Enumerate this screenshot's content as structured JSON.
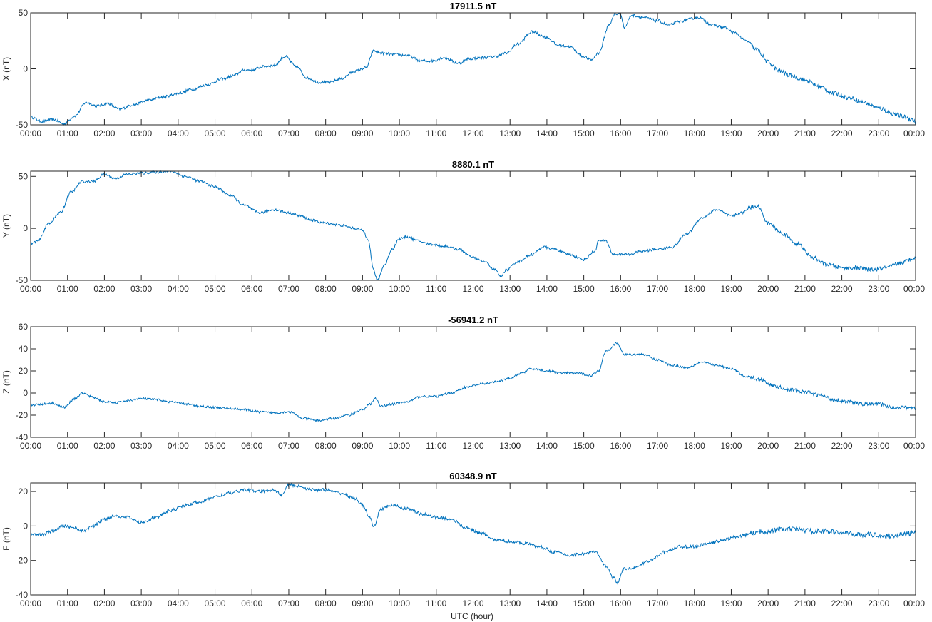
{
  "figure": {
    "xlabel": "UTC (hour)",
    "line_color": "#0072bd",
    "axis_color": "#262626",
    "background": "#ffffff"
  },
  "chart_data": [
    {
      "type": "line",
      "title": "17911.5 nT",
      "ylabel": "X (nT)",
      "ylim": [
        -50,
        50
      ],
      "yticks": [
        -50,
        0,
        50
      ],
      "xlim": [
        0,
        24
      ],
      "xticks": [
        "00:00",
        "01:00",
        "02:00",
        "03:00",
        "04:00",
        "05:00",
        "06:00",
        "07:00",
        "08:00",
        "09:00",
        "10:00",
        "11:00",
        "12:00",
        "13:00",
        "14:00",
        "15:00",
        "16:00",
        "17:00",
        "18:00",
        "19:00",
        "20:00",
        "21:00",
        "22:00",
        "23:00",
        "00:00"
      ],
      "grid": false,
      "noise": 1.2,
      "series": [
        {
          "x": [
            0,
            0.3,
            0.6,
            0.9,
            1.2,
            1.5,
            1.8,
            2.1,
            2.4,
            2.8,
            3.2,
            3.6,
            4,
            4.4,
            4.8,
            5.2,
            5.5,
            5.8,
            6,
            6.3,
            6.6,
            6.9,
            7.2,
            7.5,
            7.8,
            8.1,
            8.4,
            8.8,
            9.1,
            9.3,
            9.5,
            9.8,
            10.2,
            10.6,
            10.9,
            11.2,
            11.6,
            11.9,
            12.2,
            12.6,
            12.9,
            13.2,
            13.6,
            14,
            14.3,
            14.6,
            15,
            15.2,
            15.4,
            15.7,
            15.85,
            16.0,
            16.1,
            16.3,
            16.6,
            17,
            17.3,
            17.6,
            17.8,
            18.1,
            18.5,
            18.8,
            19.1,
            19.4,
            19.7,
            20,
            20.3,
            20.6,
            21,
            21.4,
            21.8,
            22.2,
            22.6,
            23,
            23.4,
            23.7,
            23.9,
            24
          ],
          "y": [
            -43,
            -47,
            -45,
            -49,
            -42,
            -30,
            -33,
            -31,
            -36,
            -32,
            -28,
            -25,
            -22,
            -18,
            -14,
            -9,
            -6,
            -1,
            -1,
            2,
            3,
            11,
            2,
            -8,
            -12,
            -12,
            -9,
            -2,
            1,
            16,
            14,
            13,
            12,
            7,
            7,
            10,
            5,
            9,
            10,
            11,
            14,
            22,
            33,
            28,
            21,
            20,
            11,
            8,
            14,
            40,
            49,
            49,
            37,
            48,
            46,
            43,
            39,
            42,
            44,
            46,
            39,
            37,
            32,
            25,
            17,
            6,
            -2,
            -6,
            -10,
            -16,
            -22,
            -26,
            -30,
            -35,
            -40,
            -43,
            -45,
            -48
          ]
        }
      ]
    },
    {
      "type": "line",
      "title": "8880.1 nT",
      "ylabel": "Y (nT)",
      "ylim": [
        -50,
        55
      ],
      "yticks": [
        -50,
        0,
        50
      ],
      "xlim": [
        0,
        24
      ],
      "xticks": [
        "00:00",
        "01:00",
        "02:00",
        "03:00",
        "04:00",
        "05:00",
        "06:00",
        "07:00",
        "08:00",
        "09:00",
        "10:00",
        "11:00",
        "12:00",
        "13:00",
        "14:00",
        "15:00",
        "16:00",
        "17:00",
        "18:00",
        "19:00",
        "20:00",
        "21:00",
        "22:00",
        "23:00",
        "00:00"
      ],
      "grid": false,
      "noise": 1.2,
      "series": [
        {
          "x": [
            0,
            0.2,
            0.5,
            0.8,
            1.1,
            1.4,
            1.7,
            2.0,
            2.3,
            2.6,
            3.0,
            3.4,
            3.8,
            4.2,
            4.6,
            5.0,
            5.4,
            5.8,
            6.2,
            6.6,
            7.0,
            7.3,
            7.6,
            8.0,
            8.4,
            8.8,
            9.0,
            9.15,
            9.3,
            9.4,
            9.6,
            9.8,
            10.0,
            10.2,
            10.5,
            10.8,
            11.2,
            11.6,
            12.0,
            12.3,
            12.6,
            12.75,
            12.9,
            13.2,
            13.6,
            13.9,
            14.2,
            14.6,
            15.0,
            15.3,
            15.4,
            15.6,
            15.8,
            16.2,
            16.6,
            17.0,
            17.4,
            17.8,
            18.2,
            18.6,
            19.0,
            19.3,
            19.5,
            19.7,
            20.0,
            20.4,
            20.8,
            21.2,
            21.6,
            22.0,
            22.4,
            22.8,
            23.2,
            23.6,
            24
          ],
          "y": [
            -15,
            -12,
            5,
            15,
            35,
            45,
            45,
            52,
            48,
            52,
            53,
            54,
            55,
            50,
            45,
            40,
            32,
            22,
            15,
            18,
            15,
            12,
            8,
            5,
            3,
            0,
            -2,
            -10,
            -40,
            -50,
            -35,
            -20,
            -10,
            -8,
            -12,
            -15,
            -17,
            -20,
            -28,
            -32,
            -40,
            -46,
            -40,
            -32,
            -25,
            -18,
            -20,
            -25,
            -30,
            -22,
            -12,
            -12,
            -25,
            -25,
            -22,
            -20,
            -18,
            -5,
            10,
            18,
            12,
            15,
            20,
            22,
            5,
            -5,
            -15,
            -28,
            -35,
            -38,
            -38,
            -40,
            -38,
            -33,
            -28
          ]
        }
      ]
    },
    {
      "type": "line",
      "title": "-56941.2 nT",
      "ylabel": "Z (nT)",
      "ylim": [
        -40,
        60
      ],
      "yticks": [
        -40,
        -20,
        0,
        20,
        40,
        60
      ],
      "xlim": [
        0,
        24
      ],
      "xticks": [
        "00:00",
        "01:00",
        "02:00",
        "03:00",
        "04:00",
        "05:00",
        "06:00",
        "07:00",
        "08:00",
        "09:00",
        "10:00",
        "11:00",
        "12:00",
        "13:00",
        "14:00",
        "15:00",
        "16:00",
        "17:00",
        "18:00",
        "19:00",
        "20:00",
        "21:00",
        "22:00",
        "23:00",
        "00:00"
      ],
      "grid": false,
      "noise": 1.0,
      "series": [
        {
          "x": [
            0,
            0.3,
            0.6,
            0.9,
            1.2,
            1.4,
            1.7,
            2.0,
            2.3,
            2.6,
            3.0,
            3.4,
            3.8,
            4.2,
            4.6,
            5.0,
            5.4,
            5.8,
            6.2,
            6.6,
            7.0,
            7.4,
            7.8,
            8.2,
            8.6,
            9.0,
            9.2,
            9.35,
            9.5,
            9.8,
            10.2,
            10.6,
            11.0,
            11.4,
            11.8,
            12.2,
            12.6,
            13.0,
            13.3,
            13.6,
            14.0,
            14.4,
            14.8,
            15.2,
            15.4,
            15.6,
            15.9,
            16.1,
            16.3,
            16.6,
            17.0,
            17.4,
            17.8,
            18.2,
            18.6,
            19.0,
            19.4,
            19.8,
            20.2,
            20.6,
            21.0,
            21.4,
            21.8,
            22.2,
            22.6,
            23.0,
            23.4,
            23.8,
            24
          ],
          "y": [
            -11,
            -10,
            -9,
            -13,
            -5,
            0,
            -4,
            -8,
            -9,
            -7,
            -5,
            -6,
            -8,
            -10,
            -12,
            -13,
            -14,
            -15,
            -17,
            -18,
            -17,
            -23,
            -25,
            -23,
            -20,
            -15,
            -10,
            -5,
            -12,
            -10,
            -8,
            -3,
            -3,
            0,
            5,
            8,
            10,
            13,
            18,
            22,
            20,
            18,
            18,
            16,
            20,
            38,
            45,
            35,
            35,
            35,
            30,
            25,
            23,
            28,
            25,
            22,
            15,
            12,
            6,
            3,
            1,
            -2,
            -6,
            -8,
            -10,
            -10,
            -13,
            -13,
            -14
          ]
        }
      ]
    },
    {
      "type": "line",
      "title": "60348.9 nT",
      "ylabel": "F (nT)",
      "ylim": [
        -40,
        25
      ],
      "yticks": [
        -40,
        -20,
        0,
        20
      ],
      "xlim": [
        0,
        24
      ],
      "xticks": [
        "00:00",
        "01:00",
        "02:00",
        "03:00",
        "04:00",
        "05:00",
        "06:00",
        "07:00",
        "08:00",
        "09:00",
        "10:00",
        "11:00",
        "12:00",
        "13:00",
        "14:00",
        "15:00",
        "16:00",
        "17:00",
        "18:00",
        "19:00",
        "20:00",
        "21:00",
        "22:00",
        "23:00",
        "00:00"
      ],
      "grid": false,
      "noise": 0.9,
      "series": [
        {
          "x": [
            0,
            0.3,
            0.6,
            0.9,
            1.2,
            1.4,
            1.7,
            2.0,
            2.3,
            2.6,
            3.0,
            3.4,
            3.8,
            4.2,
            4.6,
            5.0,
            5.4,
            5.8,
            6.2,
            6.6,
            6.8,
            7.0,
            7.3,
            7.6,
            8.0,
            8.4,
            8.8,
            9.0,
            9.2,
            9.3,
            9.5,
            9.8,
            10.2,
            10.6,
            11.0,
            11.4,
            11.8,
            12.2,
            12.6,
            13.0,
            13.4,
            13.8,
            14.2,
            14.6,
            15.0,
            15.3,
            15.6,
            15.8,
            15.9,
            16.1,
            16.4,
            16.8,
            17.2,
            17.6,
            18.0,
            18.4,
            18.8,
            19.2,
            19.6,
            20.0,
            20.4,
            20.8,
            21.2,
            21.6,
            22.0,
            22.4,
            22.8,
            23.2,
            23.6,
            24
          ],
          "y": [
            -5,
            -5,
            -3,
            0,
            -1,
            -3,
            0,
            4,
            6,
            5,
            2,
            5,
            9,
            12,
            14,
            17,
            19,
            21,
            20,
            21,
            18,
            24,
            23,
            21,
            21,
            19,
            16,
            12,
            5,
            -1,
            10,
            12,
            10,
            7,
            5,
            4,
            -1,
            -4,
            -8,
            -9,
            -10,
            -12,
            -15,
            -17,
            -16,
            -15,
            -23,
            -30,
            -33,
            -25,
            -24,
            -20,
            -15,
            -12,
            -12,
            -10,
            -8,
            -6,
            -4,
            -3,
            -2,
            -2,
            -3,
            -3,
            -4,
            -5,
            -5,
            -6,
            -5,
            -4
          ]
        }
      ]
    }
  ]
}
